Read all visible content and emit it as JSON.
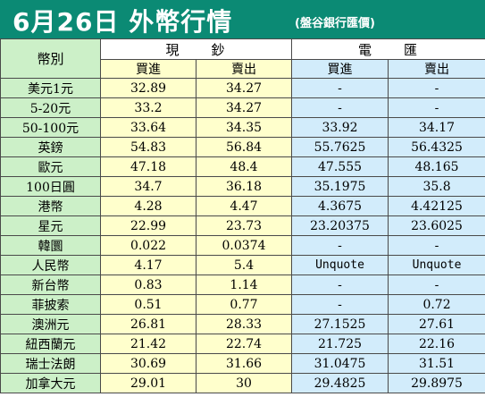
{
  "title": {
    "main": "6月26日 外幣行情",
    "source": "(盤谷銀行匯價)"
  },
  "table": {
    "currency_header": "幣別",
    "cash_header": "現　　鈔",
    "wire_header": "電　　匯",
    "buy_label": "買進",
    "sell_label": "賣出",
    "rows": [
      {
        "name": "美元1元",
        "cash_buy": "32.89",
        "cash_sell": "34.27",
        "wire_buy": "-",
        "wire_sell": "-"
      },
      {
        "name": "5-20元",
        "cash_buy": "33.2",
        "cash_sell": "34.27",
        "wire_buy": "-",
        "wire_sell": "-"
      },
      {
        "name": "50-100元",
        "cash_buy": "33.64",
        "cash_sell": "34.35",
        "wire_buy": "33.92",
        "wire_sell": "34.17"
      },
      {
        "name": "英鎊",
        "cash_buy": "54.83",
        "cash_sell": "56.84",
        "wire_buy": "55.7625",
        "wire_sell": "56.4325"
      },
      {
        "name": "歐元",
        "cash_buy": "47.18",
        "cash_sell": "48.4",
        "wire_buy": "47.555",
        "wire_sell": "48.165"
      },
      {
        "name": "100日圓",
        "cash_buy": "34.7",
        "cash_sell": "36.18",
        "wire_buy": "35.1975",
        "wire_sell": "35.8"
      },
      {
        "name": "港幣",
        "cash_buy": "4.28",
        "cash_sell": "4.47",
        "wire_buy": "4.3675",
        "wire_sell": "4.42125"
      },
      {
        "name": "星元",
        "cash_buy": "22.99",
        "cash_sell": "23.73",
        "wire_buy": "23.20375",
        "wire_sell": "23.6025"
      },
      {
        "name": "韓圜",
        "cash_buy": "0.022",
        "cash_sell": "0.0374",
        "wire_buy": "-",
        "wire_sell": "-"
      },
      {
        "name": "人民幣",
        "cash_buy": "4.17",
        "cash_sell": "5.4",
        "wire_buy": "Unquote",
        "wire_sell": "Unquote"
      },
      {
        "name": "新台幣",
        "cash_buy": "0.83",
        "cash_sell": "1.14",
        "wire_buy": "-",
        "wire_sell": "-"
      },
      {
        "name": "菲披索",
        "cash_buy": "0.51",
        "cash_sell": "0.77",
        "wire_buy": "-",
        "wire_sell": "0.72"
      },
      {
        "name": "澳洲元",
        "cash_buy": "26.81",
        "cash_sell": "28.33",
        "wire_buy": "27.1525",
        "wire_sell": "27.61"
      },
      {
        "name": "紐西蘭元",
        "cash_buy": "21.42",
        "cash_sell": "22.74",
        "wire_buy": "21.725",
        "wire_sell": "22.16"
      },
      {
        "name": "瑞士法朗",
        "cash_buy": "30.69",
        "cash_sell": "31.66",
        "wire_buy": "31.0475",
        "wire_sell": "31.51"
      },
      {
        "name": "加拿大元",
        "cash_buy": "29.01",
        "cash_sell": "30",
        "wire_buy": "29.4825",
        "wire_sell": "29.8975"
      }
    ]
  },
  "colors": {
    "title_bg": "#0b8a74",
    "name_col_bg": "#ccf0c8",
    "cash_bg": "#ffffcc",
    "wire_bg": "#d2ecfb"
  }
}
